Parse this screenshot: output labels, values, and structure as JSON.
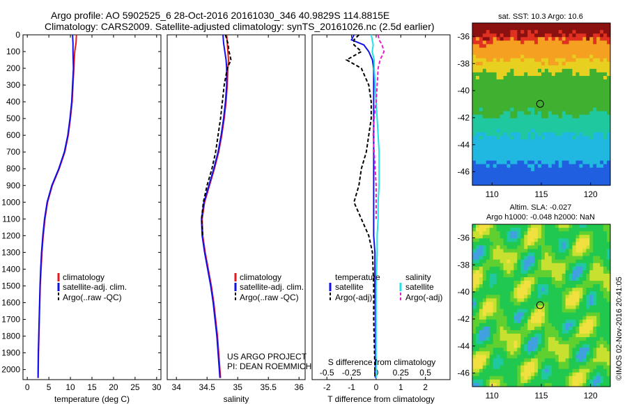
{
  "header": {
    "line1": "Argo profile: AO 5902525_6 28-Oct-2016 20161030_346 40.9829S 114.8815E",
    "line2": "Climatology: CARS2009. Satellite-adjusted climatology: synTS_20161026.nc (2.5d earlier)"
  },
  "credit": {
    "project": "US ARGO PROJECT",
    "pi": "PI: DEAN ROEMMICH",
    "imos": "©IMOS 02-Nov-2016 20:41:05"
  },
  "colors": {
    "climatology": "#e8181c",
    "satellite": "#1010e6",
    "argo": "#000000",
    "sat_salinity": "#22e0e6",
    "argo_salinity": "#e61fc8"
  },
  "chart_data": [
    {
      "type": "line",
      "id": "temperature",
      "xlabel": "temperature (deg C)",
      "ylabel": "",
      "xlim": [
        -1,
        31
      ],
      "ylim": [
        2060,
        0
      ],
      "xticks": [
        "0",
        "5",
        "10",
        "15",
        "20",
        "25",
        "30"
      ],
      "xtick_values": [
        0,
        5,
        10,
        15,
        20,
        25,
        30
      ],
      "yticks": [
        "0",
        "100",
        "200",
        "300",
        "400",
        "500",
        "600",
        "700",
        "800",
        "900",
        "1000",
        "1100",
        "1200",
        "1300",
        "1400",
        "1500",
        "1600",
        "1700",
        "1800",
        "1900",
        "2000"
      ],
      "ytick_values": [
        0,
        100,
        200,
        300,
        400,
        500,
        600,
        700,
        800,
        900,
        1000,
        1100,
        1200,
        1300,
        1400,
        1500,
        1600,
        1700,
        1800,
        1900,
        2000
      ],
      "legend": [
        "climatology",
        "satellite-adj. clim.",
        "Argo(..raw -QC)"
      ],
      "depth": [
        0,
        50,
        100,
        200,
        300,
        400,
        500,
        600,
        700,
        800,
        900,
        1000,
        1100,
        1200,
        1300,
        1400,
        1500,
        1600,
        1700,
        1800,
        1900,
        2000,
        2050
      ],
      "series": [
        {
          "name": "climatology",
          "values": [
            11.4,
            11.3,
            11.0,
            10.8,
            10.6,
            10.4,
            10.0,
            9.5,
            8.7,
            7.4,
            5.8,
            4.7,
            4.1,
            3.7,
            3.4,
            3.2,
            3.0,
            2.9,
            2.8,
            2.7,
            2.6,
            2.55,
            2.5
          ]
        },
        {
          "name": "satellite-adj. clim.",
          "values": [
            10.5,
            10.6,
            10.6,
            10.7,
            10.5,
            10.3,
            9.9,
            9.4,
            8.6,
            7.3,
            5.7,
            4.6,
            4.0,
            3.6,
            3.3,
            3.1,
            2.95,
            2.85,
            2.75,
            2.65,
            2.55,
            2.5,
            2.5
          ]
        }
      ]
    },
    {
      "type": "line",
      "id": "salinity",
      "xlabel": "salinity",
      "ylabel": "",
      "xlim": [
        33.85,
        36.1
      ],
      "ylim": [
        2060,
        0
      ],
      "xticks": [
        "34",
        "34.5",
        "35",
        "35.5",
        "36"
      ],
      "xtick_values": [
        34,
        34.5,
        35,
        35.5,
        36
      ],
      "legend": [
        "climatology",
        "satellite-adj. clim.",
        "Argo(..raw -QC)"
      ],
      "depth": [
        0,
        50,
        100,
        150,
        200,
        300,
        400,
        500,
        600,
        700,
        800,
        900,
        1000,
        1100,
        1200,
        1300,
        1400,
        1500,
        1600,
        1700,
        1800,
        1900,
        2000,
        2050
      ],
      "series": [
        {
          "name": "climatology",
          "values": [
            34.82,
            34.83,
            34.84,
            34.85,
            34.84,
            34.83,
            34.81,
            34.78,
            34.74,
            34.69,
            34.62,
            34.54,
            34.46,
            34.42,
            34.43,
            34.47,
            34.52,
            34.57,
            34.61,
            34.64,
            34.67,
            34.69,
            34.71,
            34.72
          ]
        },
        {
          "name": "satellite-adj. clim.",
          "values": [
            34.76,
            34.77,
            34.79,
            34.81,
            34.82,
            34.82,
            34.8,
            34.77,
            34.73,
            34.68,
            34.61,
            34.53,
            34.45,
            34.41,
            34.42,
            34.46,
            34.51,
            34.56,
            34.6,
            34.63,
            34.66,
            34.68,
            34.7,
            34.71
          ]
        },
        {
          "name": "Argo(..raw -QC)",
          "values": [
            34.8,
            34.84,
            34.86,
            34.89,
            34.83,
            34.78,
            34.75,
            34.72,
            34.68,
            34.64,
            34.58,
            34.5,
            34.44,
            34.41,
            34.43
          ]
        }
      ]
    },
    {
      "type": "line",
      "id": "difference",
      "xlabel": "T difference from climatology",
      "x2label": "S difference from climatology",
      "xlim": [
        -2.6,
        3
      ],
      "x2lim": [
        -0.65,
        0.75
      ],
      "ylim": [
        2060,
        0
      ],
      "xticks": [
        "-2",
        "-1",
        "0",
        "1",
        "2"
      ],
      "xtick_values": [
        -2,
        -1,
        0,
        1,
        2
      ],
      "x2ticks": [
        "-0.5",
        "-0.25",
        "0",
        "0.25",
        "0.5"
      ],
      "x2tick_values": [
        -0.5,
        -0.25,
        0,
        0.25,
        0.5
      ],
      "legend_temperature_title": "temperature",
      "legend_salinity_title": "salinity",
      "legend_temperature": [
        "satellite",
        "Argo(-adj)"
      ],
      "legend_salinity": [
        "satellite",
        "Argo(-adj)"
      ],
      "depth": [
        0,
        30,
        60,
        100,
        150,
        200,
        300,
        400,
        500,
        600,
        700,
        800,
        900,
        1000,
        1100,
        1200,
        1300,
        1500,
        1700,
        2000,
        2050
      ],
      "series": [
        {
          "name": "T satellite",
          "values": [
            -0.9,
            -1.0,
            -0.5,
            -0.3,
            -0.15,
            -0.1,
            -0.1,
            -0.1,
            -0.1,
            -0.1,
            -0.1,
            -0.1,
            -0.1,
            -0.1,
            -0.1,
            -0.1,
            -0.05,
            -0.05,
            -0.03,
            -0.03,
            -0.03
          ]
        },
        {
          "name": "T Argo(-adj)",
          "values": [
            -0.7,
            -0.9,
            -0.9,
            -0.6,
            -1.2,
            -0.6,
            -0.3,
            -0.2,
            -0.2,
            -0.3,
            -0.4,
            -0.6,
            -0.7,
            -0.9,
            -0.6,
            -0.3,
            -0.15,
            -0.1,
            -0.1,
            -0.05,
            -0.05
          ]
        },
        {
          "name": "S satellite",
          "values": [
            -0.05,
            -0.04,
            -0.03,
            -0.04,
            -0.02,
            -0.02,
            -0.01,
            0.0,
            0.01,
            0.02,
            0.03,
            0.03,
            0.03,
            0.02,
            0.02,
            0.01,
            0.01,
            0.0,
            0.0,
            0.0,
            0.0
          ]
        },
        {
          "name": "S Argo(-adj)",
          "values": [
            0.02,
            0.03,
            0.06,
            0.08,
            0.04,
            0.02,
            0.01,
            0.0,
            -0.02,
            -0.03,
            -0.02,
            -0.01,
            0.0,
            0.0,
            0.0
          ]
        }
      ]
    },
    {
      "type": "heatmap",
      "id": "sst-map",
      "title": "sat. SST: 10.3  Argo: 10.6",
      "xlim": [
        108,
        122
      ],
      "ylim": [
        -47,
        -35
      ],
      "xticks": [
        "110",
        "115",
        "120"
      ],
      "xtick_values": [
        110,
        115,
        120
      ],
      "yticks": [
        "-36",
        "-38",
        "-40",
        "-42",
        "-44",
        "-46"
      ],
      "ytick_values": [
        -36,
        -38,
        -40,
        -42,
        -44,
        -46
      ],
      "argo_position": [
        114.88,
        -40.98
      ],
      "colors": [
        "#8b1010",
        "#e03020",
        "#f5a020",
        "#e8d020",
        "#40b030",
        "#20c8a0",
        "#20b8e0",
        "#2060e0"
      ]
    },
    {
      "type": "heatmap",
      "id": "sla-map",
      "title": "Altim. SLA: -0.027",
      "subtitle": "Argo h1000: -0.048 h2000: NaN",
      "xlim": [
        108,
        122
      ],
      "ylim": [
        -47,
        -35
      ],
      "xticks": [
        "110",
        "115",
        "120"
      ],
      "xtick_values": [
        110,
        115,
        120
      ],
      "yticks": [
        "-36",
        "-38",
        "-40",
        "-42",
        "-44",
        "-46"
      ],
      "ytick_values": [
        -36,
        -38,
        -40,
        -42,
        -44,
        -46
      ],
      "argo_position": [
        114.88,
        -40.98
      ],
      "colors": [
        "#20c850",
        "#60d030",
        "#c8e030",
        "#f0e040",
        "#20c8a0",
        "#40a0e0"
      ]
    }
  ]
}
